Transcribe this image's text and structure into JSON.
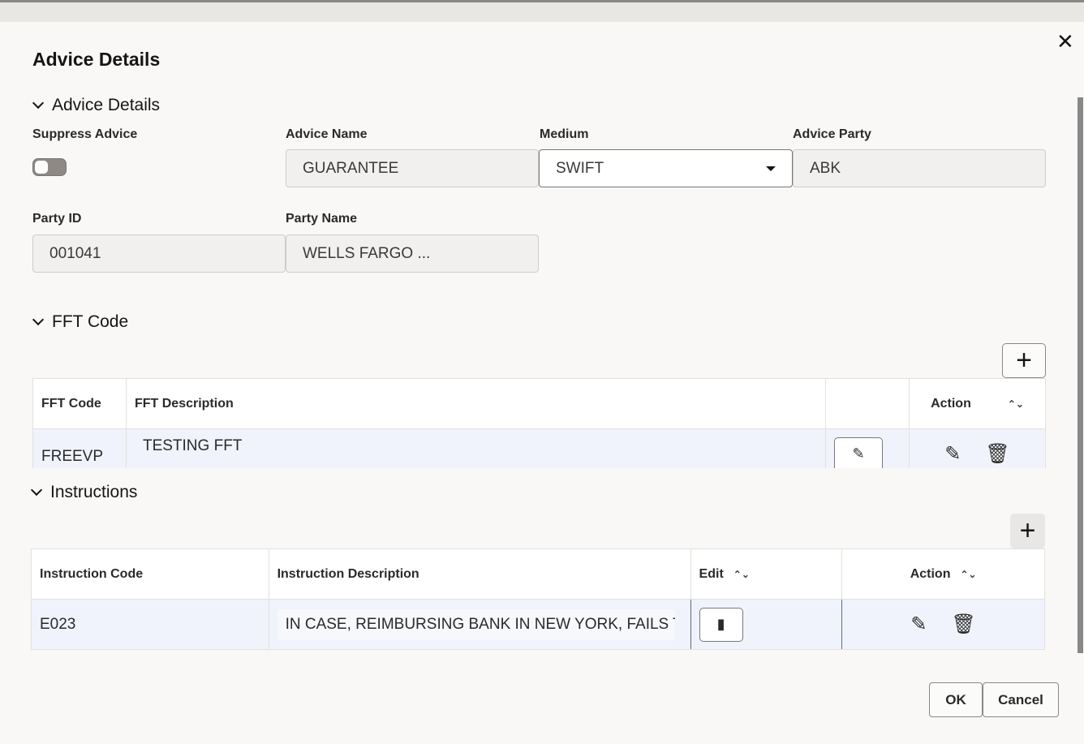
{
  "dialog": {
    "title": "Advice Details",
    "close_icon": "close-icon"
  },
  "advice": {
    "section": "Advice Details",
    "suppress_label": "Suppress Advice",
    "suppress_on": false,
    "advice_name_label": "Advice Name",
    "advice_name": "GUARANTEE",
    "medium_label": "Medium",
    "medium": "SWIFT",
    "party_label": "Advice Party",
    "party": "ABK",
    "party_id_label": "Party ID",
    "party_id": "001041",
    "party_name_label": "Party Name",
    "party_name": "WELLS FARGO ..."
  },
  "fft": {
    "section": "FFT Code",
    "headers": [
      "FFT Code",
      "FFT Description",
      "",
      "Action"
    ],
    "rows": [
      {
        "code": "FREEVP",
        "description": "TESTING FFT"
      }
    ]
  },
  "instructions": {
    "section": "Instructions",
    "headers": [
      "Instruction Code",
      "Instruction Description",
      "Edit",
      "Action"
    ],
    "rows": [
      {
        "code": "E023",
        "description": "IN CASE, REIMBURSING BANK IN NEW YORK, FAILS TO F"
      }
    ]
  },
  "footer": {
    "ok": "OK",
    "cancel": "Cancel"
  }
}
